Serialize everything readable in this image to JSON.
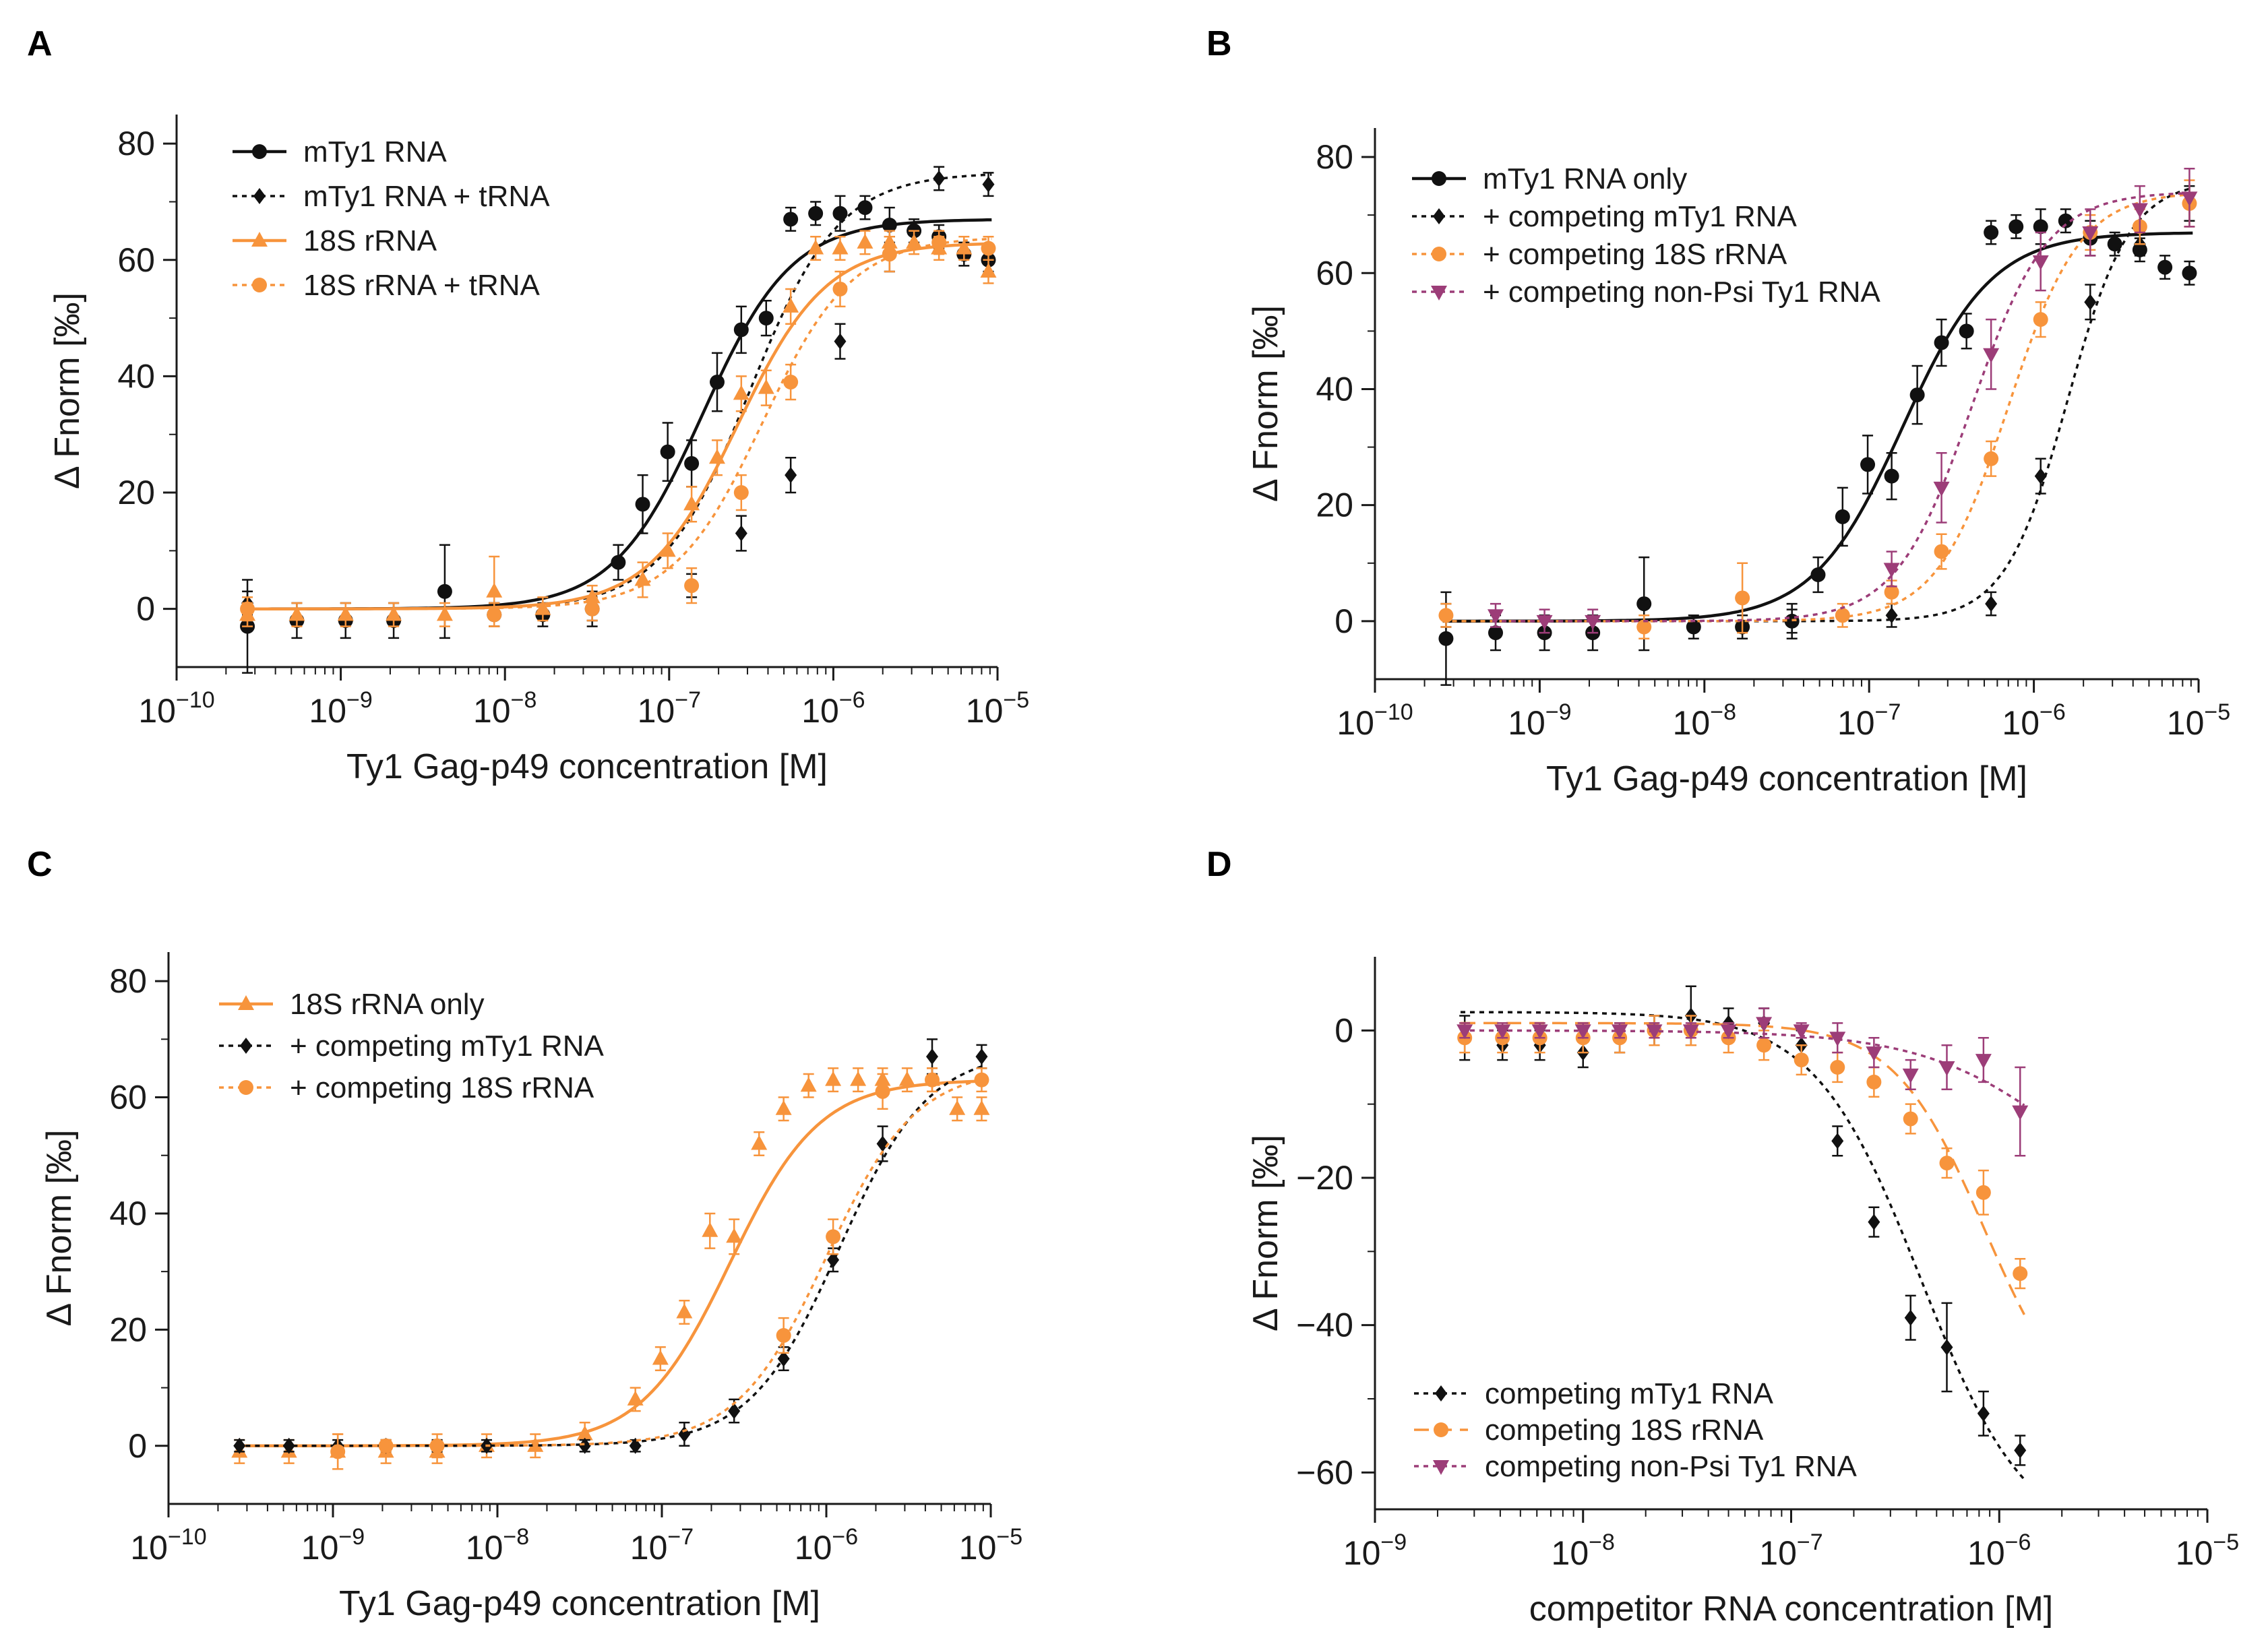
{
  "colors": {
    "black": "#111111",
    "orange": "#f7943c",
    "purple": "#9c3d78"
  },
  "chart_data": [
    {
      "panel": "A",
      "type": "scatter",
      "xlabel": "Ty1 Gag-p49 concentration [M]",
      "ylabel": "Δ Fnorm [‰]",
      "xscale": "log",
      "xlim_log10": [
        -10,
        -5
      ],
      "ylim": [
        -10,
        85
      ],
      "xticks": [
        {
          "exp": "-10"
        },
        {
          "exp": "-9"
        },
        {
          "exp": "-8"
        },
        {
          "exp": "-7"
        },
        {
          "exp": "-6"
        },
        {
          "exp": "-5"
        }
      ],
      "yticks": [
        0,
        20,
        40,
        60,
        80
      ],
      "legend_position": "top-left",
      "series": [
        {
          "name": "mTy1 RNA",
          "color": "#111111",
          "marker": "circle",
          "dash": "solid",
          "fit": [
            0,
            67,
            1.6e-07,
            1.6
          ],
          "x": [
            2.7e-10,
            5.4e-10,
            1.07e-09,
            2.1e-09,
            4.3e-09,
            8.6e-09,
            1.7e-08,
            3.4e-08,
            4.9e-08,
            6.9e-08,
            9.8e-08,
            1.37e-07,
            1.96e-07,
            2.75e-07,
            3.9e-07,
            5.5e-07,
            7.8e-07,
            1.1e-06,
            1.56e-06,
            2.2e-06,
            3.1e-06,
            4.4e-06,
            6.25e-06,
            8.8e-06
          ],
          "y": [
            -3,
            -2,
            -2,
            -2,
            3,
            -1,
            -1,
            0,
            8,
            18,
            27,
            25,
            39,
            48,
            50,
            67,
            68,
            68,
            69,
            66,
            65,
            64,
            61,
            60
          ],
          "err": [
            8,
            3,
            3,
            3,
            8,
            2,
            2,
            3,
            3,
            5,
            5,
            4,
            5,
            4,
            3,
            2,
            2,
            3,
            2,
            3,
            2,
            2,
            2,
            2
          ]
        },
        {
          "name": "mTy1 RNA + tRNA",
          "color": "#111111",
          "marker": "diamond",
          "dash": "dotted",
          "fit": [
            0,
            75,
            3.1e-07,
            1.6
          ],
          "x": [
            2.7e-10,
            8.6e-09,
            3.4e-08,
            1.37e-07,
            2.75e-07,
            5.5e-07,
            1.1e-06,
            2.2e-06,
            4.4e-06,
            8.8e-06
          ],
          "y": [
            1,
            -1,
            0,
            4,
            13,
            23,
            46,
            61,
            74,
            73
          ],
          "err": [
            2,
            2,
            2,
            2,
            3,
            3,
            3,
            3,
            2,
            2
          ]
        },
        {
          "name": "18S rRNA",
          "color": "#f7943c",
          "marker": "triangle",
          "dash": "solid",
          "fit": [
            0,
            63,
            2.6e-07,
            1.6
          ],
          "x": [
            2.7e-10,
            5.4e-10,
            1.07e-09,
            2.1e-09,
            4.3e-09,
            8.6e-09,
            1.7e-08,
            3.4e-08,
            6.9e-08,
            9.8e-08,
            1.37e-07,
            1.96e-07,
            2.75e-07,
            3.9e-07,
            5.5e-07,
            7.8e-07,
            1.1e-06,
            1.56e-06,
            2.2e-06,
            3.1e-06,
            4.4e-06,
            6.25e-06,
            8.8e-06
          ],
          "y": [
            -1,
            -1,
            -1,
            -1,
            -1,
            3,
            0,
            2,
            5,
            10,
            18,
            26,
            37,
            38,
            52,
            62,
            62,
            63,
            63,
            63,
            62,
            62,
            58
          ],
          "err": [
            2,
            2,
            2,
            2,
            2,
            6,
            2,
            2,
            3,
            3,
            3,
            3,
            3,
            3,
            3,
            2,
            2,
            2,
            2,
            2,
            2,
            2,
            2
          ]
        },
        {
          "name": "18S rRNA + tRNA",
          "color": "#f7943c",
          "marker": "circle",
          "dash": "dotted",
          "fit": [
            0,
            64,
            3.7e-07,
            1.6
          ],
          "x": [
            2.7e-10,
            8.6e-09,
            3.4e-08,
            1.37e-07,
            2.75e-07,
            5.5e-07,
            1.1e-06,
            2.2e-06,
            4.4e-06,
            8.8e-06
          ],
          "y": [
            0,
            -1,
            0,
            4,
            20,
            39,
            55,
            61,
            63,
            62
          ],
          "err": [
            2,
            2,
            2,
            3,
            3,
            3,
            3,
            3,
            2,
            2
          ]
        }
      ]
    },
    {
      "panel": "B",
      "type": "scatter",
      "xlabel": "Ty1 Gag-p49 concentration [M]",
      "ylabel": "Δ Fnorm [‰]",
      "xscale": "log",
      "xlim_log10": [
        -10,
        -5
      ],
      "ylim": [
        -10,
        85
      ],
      "xticks": [
        {
          "exp": "-10"
        },
        {
          "exp": "-9"
        },
        {
          "exp": "-8"
        },
        {
          "exp": "-7"
        },
        {
          "exp": "-6"
        },
        {
          "exp": "-5"
        }
      ],
      "yticks": [
        0,
        20,
        40,
        60,
        80
      ],
      "legend_position": "top-left",
      "series": [
        {
          "name": "mTy1 RNA only",
          "color": "#111111",
          "marker": "circle",
          "dash": "solid",
          "fit": [
            0,
            67,
            1.6e-07,
            1.6
          ],
          "x": [
            2.7e-10,
            5.4e-10,
            1.07e-09,
            2.1e-09,
            4.3e-09,
            8.6e-09,
            1.7e-08,
            3.4e-08,
            4.9e-08,
            6.9e-08,
            9.8e-08,
            1.37e-07,
            1.96e-07,
            2.75e-07,
            3.9e-07,
            5.5e-07,
            7.8e-07,
            1.1e-06,
            1.56e-06,
            2.2e-06,
            3.1e-06,
            4.4e-06,
            6.25e-06,
            8.8e-06
          ],
          "y": [
            -3,
            -2,
            -2,
            -2,
            3,
            -1,
            -1,
            0,
            8,
            18,
            27,
            25,
            39,
            48,
            50,
            67,
            68,
            68,
            69,
            66,
            65,
            64,
            61,
            60
          ],
          "err": [
            8,
            3,
            3,
            3,
            8,
            2,
            2,
            3,
            3,
            5,
            5,
            4,
            5,
            4,
            3,
            2,
            2,
            3,
            2,
            3,
            2,
            2,
            2,
            2
          ]
        },
        {
          "name": "+ competing mTy1 RNA",
          "color": "#111111",
          "marker": "diamond",
          "dash": "dotted",
          "fit": [
            0,
            76,
            1.6e-06,
            2.3
          ],
          "x": [
            2.7e-10,
            3.4e-08,
            1.37e-07,
            5.5e-07,
            1.1e-06,
            2.2e-06,
            4.4e-06,
            8.8e-06
          ],
          "y": [
            1,
            0,
            1,
            3,
            25,
            55,
            65,
            72
          ],
          "err": [
            2,
            2,
            2,
            2,
            3,
            3,
            2,
            3
          ]
        },
        {
          "name": "+ competing 18S rRNA",
          "color": "#f7943c",
          "marker": "circle",
          "dash": "dotted",
          "fit": [
            0,
            74,
            7e-07,
            2.0
          ],
          "x": [
            2.7e-10,
            4.3e-09,
            1.7e-08,
            6.9e-08,
            1.37e-07,
            2.75e-07,
            5.5e-07,
            1.1e-06,
            2.2e-06,
            4.4e-06,
            8.8e-06
          ],
          "y": [
            1,
            -1,
            4,
            1,
            5,
            12,
            28,
            52,
            67,
            68,
            72
          ],
          "err": [
            2,
            2,
            6,
            2,
            2,
            3,
            3,
            3,
            3,
            3,
            4
          ]
        },
        {
          "name": "+ competing non-Psi Ty1 RNA",
          "color": "#9c3d78",
          "marker": "triangle-down",
          "dash": "dotted",
          "fit": [
            0,
            74,
            4.2e-07,
            1.9
          ],
          "x": [
            5.4e-10,
            1.07e-09,
            2.1e-09,
            1.37e-07,
            2.75e-07,
            5.5e-07,
            1.1e-06,
            2.2e-06,
            4.4e-06,
            8.8e-06
          ],
          "y": [
            1,
            0,
            0,
            9,
            23,
            46,
            62,
            67,
            71,
            73
          ],
          "err": [
            2,
            2,
            2,
            3,
            6,
            6,
            5,
            4,
            4,
            5
          ]
        }
      ]
    },
    {
      "panel": "C",
      "type": "scatter",
      "xlabel": "Ty1 Gag-p49 concentration [M]",
      "ylabel": "Δ Fnorm [‰]",
      "xscale": "log",
      "xlim_log10": [
        -10,
        -5
      ],
      "ylim": [
        -10,
        85
      ],
      "xticks": [
        {
          "exp": "-10"
        },
        {
          "exp": "-9"
        },
        {
          "exp": "-8"
        },
        {
          "exp": "-7"
        },
        {
          "exp": "-6"
        },
        {
          "exp": "-5"
        }
      ],
      "yticks": [
        0,
        20,
        40,
        60,
        80
      ],
      "legend_position": "top-left",
      "series": [
        {
          "name": "18S rRNA only",
          "color": "#f7943c",
          "marker": "triangle",
          "dash": "solid",
          "fit": [
            0,
            63,
            2.6e-07,
            1.6
          ],
          "x": [
            2.7e-10,
            5.4e-10,
            1.07e-09,
            2.1e-09,
            4.3e-09,
            8.6e-09,
            1.7e-08,
            3.4e-08,
            6.9e-08,
            9.8e-08,
            1.37e-07,
            1.96e-07,
            2.75e-07,
            3.9e-07,
            5.5e-07,
            7.8e-07,
            1.1e-06,
            1.56e-06,
            2.2e-06,
            3.1e-06,
            4.4e-06,
            6.25e-06,
            8.8e-06
          ],
          "y": [
            -1,
            -1,
            -1,
            -1,
            -1,
            0,
            0,
            2,
            8,
            15,
            23,
            37,
            36,
            52,
            58,
            62,
            63,
            63,
            63,
            63,
            63,
            58,
            58
          ],
          "err": [
            2,
            2,
            3,
            2,
            2,
            2,
            2,
            2,
            2,
            2,
            2,
            3,
            3,
            2,
            2,
            2,
            2,
            2,
            2,
            2,
            2,
            2,
            2
          ]
        },
        {
          "name": "+ competing mTy1 RNA",
          "color": "#111111",
          "marker": "diamond",
          "dash": "dotted",
          "fit": [
            0,
            68,
            1.2e-06,
            1.6
          ],
          "x": [
            2.7e-10,
            5.4e-10,
            1.07e-09,
            2.1e-09,
            4.3e-09,
            8.6e-09,
            3.4e-08,
            6.9e-08,
            1.37e-07,
            2.75e-07,
            5.5e-07,
            1.1e-06,
            2.2e-06,
            4.4e-06,
            8.8e-06
          ],
          "y": [
            0,
            0,
            0,
            0,
            0,
            0,
            0,
            0,
            2,
            6,
            15,
            32,
            52,
            67,
            67
          ],
          "err": [
            1,
            1,
            1,
            1,
            1,
            1,
            1,
            1,
            2,
            2,
            2,
            2,
            3,
            3,
            2
          ]
        },
        {
          "name": "+ competing 18S rRNA",
          "color": "#f7943c",
          "marker": "circle",
          "dash": "dotted",
          "fit": [
            0,
            65,
            1e-06,
            1.6
          ],
          "x": [
            1.07e-09,
            2.1e-09,
            4.3e-09,
            5.5e-07,
            1.1e-06,
            2.2e-06,
            4.4e-06,
            8.8e-06
          ],
          "y": [
            -1,
            0,
            0,
            19,
            36,
            61,
            63,
            63
          ],
          "err": [
            3,
            1,
            2,
            3,
            3,
            3,
            2,
            2
          ]
        }
      ]
    },
    {
      "panel": "D",
      "type": "scatter",
      "xlabel": "competitor RNA concentration [M]",
      "ylabel": "Δ Fnorm [‰]",
      "xscale": "log",
      "xlim_log10": [
        -9,
        -5
      ],
      "ylim": [
        -65,
        10
      ],
      "xticks": [
        {
          "exp": "-9"
        },
        {
          "exp": "-8"
        },
        {
          "exp": "-7"
        },
        {
          "exp": "-6"
        },
        {
          "exp": "-5"
        }
      ],
      "yticks": [
        0,
        -20,
        -40,
        -60
      ],
      "legend_position": "bottom-left",
      "series": [
        {
          "name": "competing mTy1 RNA",
          "color": "#111111",
          "marker": "diamond",
          "dash": "dotted",
          "fit": [
            2.5,
            -70,
            4.2e-07,
            1.7
          ],
          "x": [
            2.7e-09,
            4.1e-09,
            6.2e-09,
            1e-08,
            1.5e-08,
            2.2e-08,
            3.3e-08,
            5e-08,
            7.4e-08,
            1.12e-07,
            1.67e-07,
            2.5e-07,
            3.75e-07,
            5.6e-07,
            8.4e-07,
            1.26e-06
          ],
          "y": [
            -1,
            -2,
            -2,
            -3,
            -1,
            0,
            2,
            1,
            1,
            -2,
            -15,
            -26,
            -39,
            -43,
            -52,
            -57
          ],
          "err": [
            3,
            2,
            2,
            2,
            2,
            2,
            4,
            2,
            2,
            2,
            2,
            2,
            3,
            6,
            3,
            2
          ]
        },
        {
          "name": "competing 18S rRNA",
          "color": "#f7943c",
          "marker": "circle",
          "dash": "dashed",
          "fit": [
            1,
            -55,
            8.5e-07,
            2.0
          ],
          "x": [
            2.7e-09,
            4.1e-09,
            6.2e-09,
            1e-08,
            1.5e-08,
            2.2e-08,
            3.3e-08,
            5e-08,
            7.4e-08,
            1.12e-07,
            1.67e-07,
            2.5e-07,
            3.75e-07,
            5.6e-07,
            8.4e-07,
            1.26e-06
          ],
          "y": [
            -1,
            -1,
            -1,
            -1,
            -1,
            0,
            0,
            -1,
            -2,
            -4,
            -5,
            -7,
            -12,
            -18,
            -22,
            -33
          ],
          "err": [
            2,
            2,
            2,
            2,
            2,
            2,
            2,
            2,
            2,
            2,
            2,
            2,
            2,
            2,
            3,
            2
          ]
        },
        {
          "name": "competing non-Psi Ty1 RNA",
          "color": "#9c3d78",
          "marker": "triangle-down",
          "dash": "dotted",
          "fit": [
            0,
            -32,
            2.5e-06,
            1.2
          ],
          "x": [
            2.7e-09,
            4.1e-09,
            6.2e-09,
            1e-08,
            1.5e-08,
            2.2e-08,
            3.3e-08,
            5e-08,
            7.4e-08,
            1.12e-07,
            1.67e-07,
            2.5e-07,
            3.75e-07,
            5.6e-07,
            8.4e-07,
            1.26e-06
          ],
          "y": [
            0,
            0,
            0,
            0,
            0,
            0,
            0,
            0,
            1,
            0,
            -1,
            -3,
            -6,
            -5,
            -4,
            -11
          ],
          "err": [
            1,
            1,
            1,
            1,
            1,
            1,
            1,
            1,
            2,
            1,
            2,
            2,
            2,
            3,
            3,
            6
          ]
        }
      ]
    }
  ]
}
